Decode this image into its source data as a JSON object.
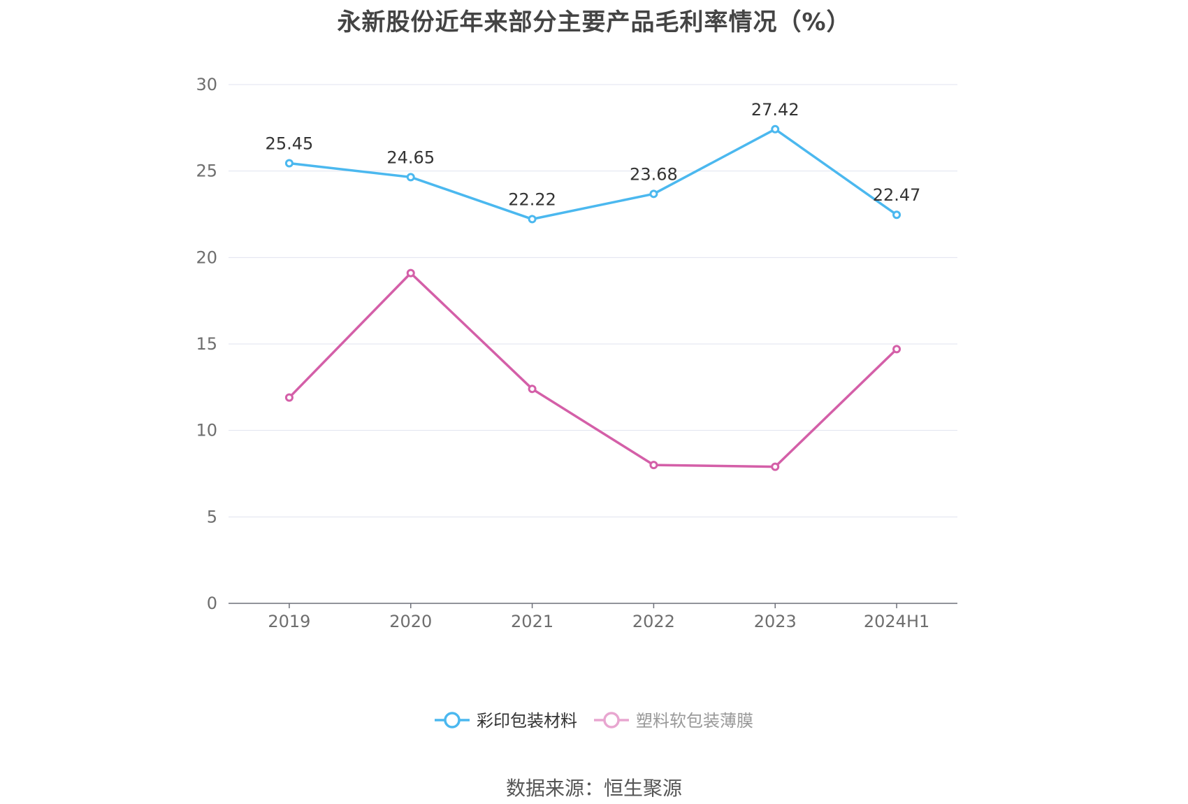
{
  "chart_data": {
    "type": "line",
    "title": "永新股份近年来部分主要产品毛利率情况（%）",
    "source": "数据来源：恒生聚源",
    "categories": [
      "2019",
      "2020",
      "2021",
      "2022",
      "2023",
      "2024H1"
    ],
    "ylim": [
      0,
      30
    ],
    "yticks": [
      0,
      5,
      10,
      15,
      20,
      25,
      30
    ],
    "grid": true,
    "legend_position": "bottom",
    "series": [
      {
        "name": "彩印包装材料",
        "color": "#4bb8ef",
        "values": [
          25.45,
          24.65,
          22.22,
          23.68,
          27.42,
          22.47
        ],
        "labels_shown": true
      },
      {
        "name": "塑料软包装薄膜",
        "color": "#d45fa8",
        "legend_color": "#e8a6d0",
        "legend_text_color": "#999999",
        "values": [
          11.9,
          19.1,
          12.4,
          8.0,
          7.9,
          14.7
        ],
        "labels_shown": false
      }
    ]
  }
}
